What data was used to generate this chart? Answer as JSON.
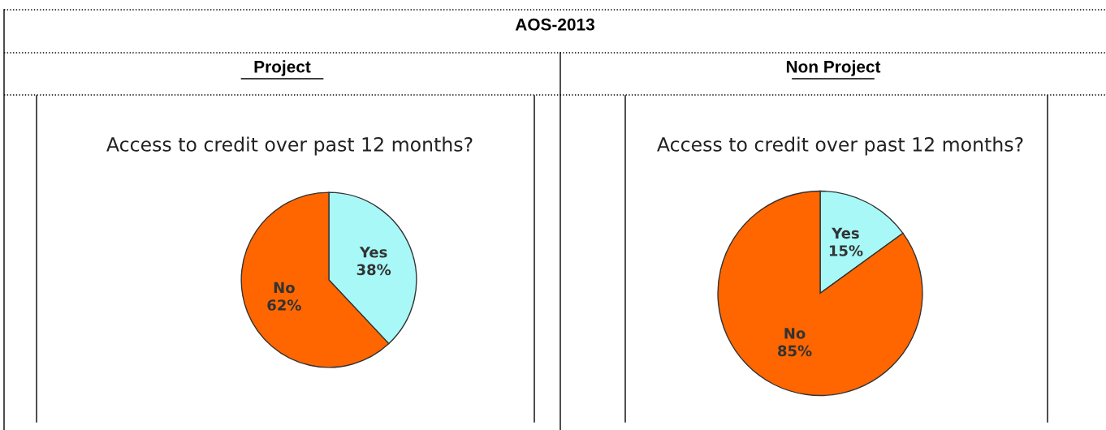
{
  "chart_data": [
    {
      "type": "pie",
      "title": "Project",
      "subtitle": "Access to credit over past 12 months?",
      "annotations": [
        "AOS-2013"
      ],
      "categories": [
        "Yes",
        "No"
      ],
      "values": [
        38,
        62
      ],
      "value_labels": [
        "38%",
        "62%"
      ],
      "colors": [
        "#a8f8f8",
        "#ff6600"
      ]
    },
    {
      "type": "pie",
      "title": "Non Project",
      "subtitle": "Access to credit over past 12 months?",
      "categories": [
        "Yes",
        "No"
      ],
      "values": [
        15,
        85
      ],
      "value_labels": [
        "15%",
        "85%"
      ],
      "colors": [
        "#a8f8f8",
        "#ff6600"
      ]
    }
  ]
}
